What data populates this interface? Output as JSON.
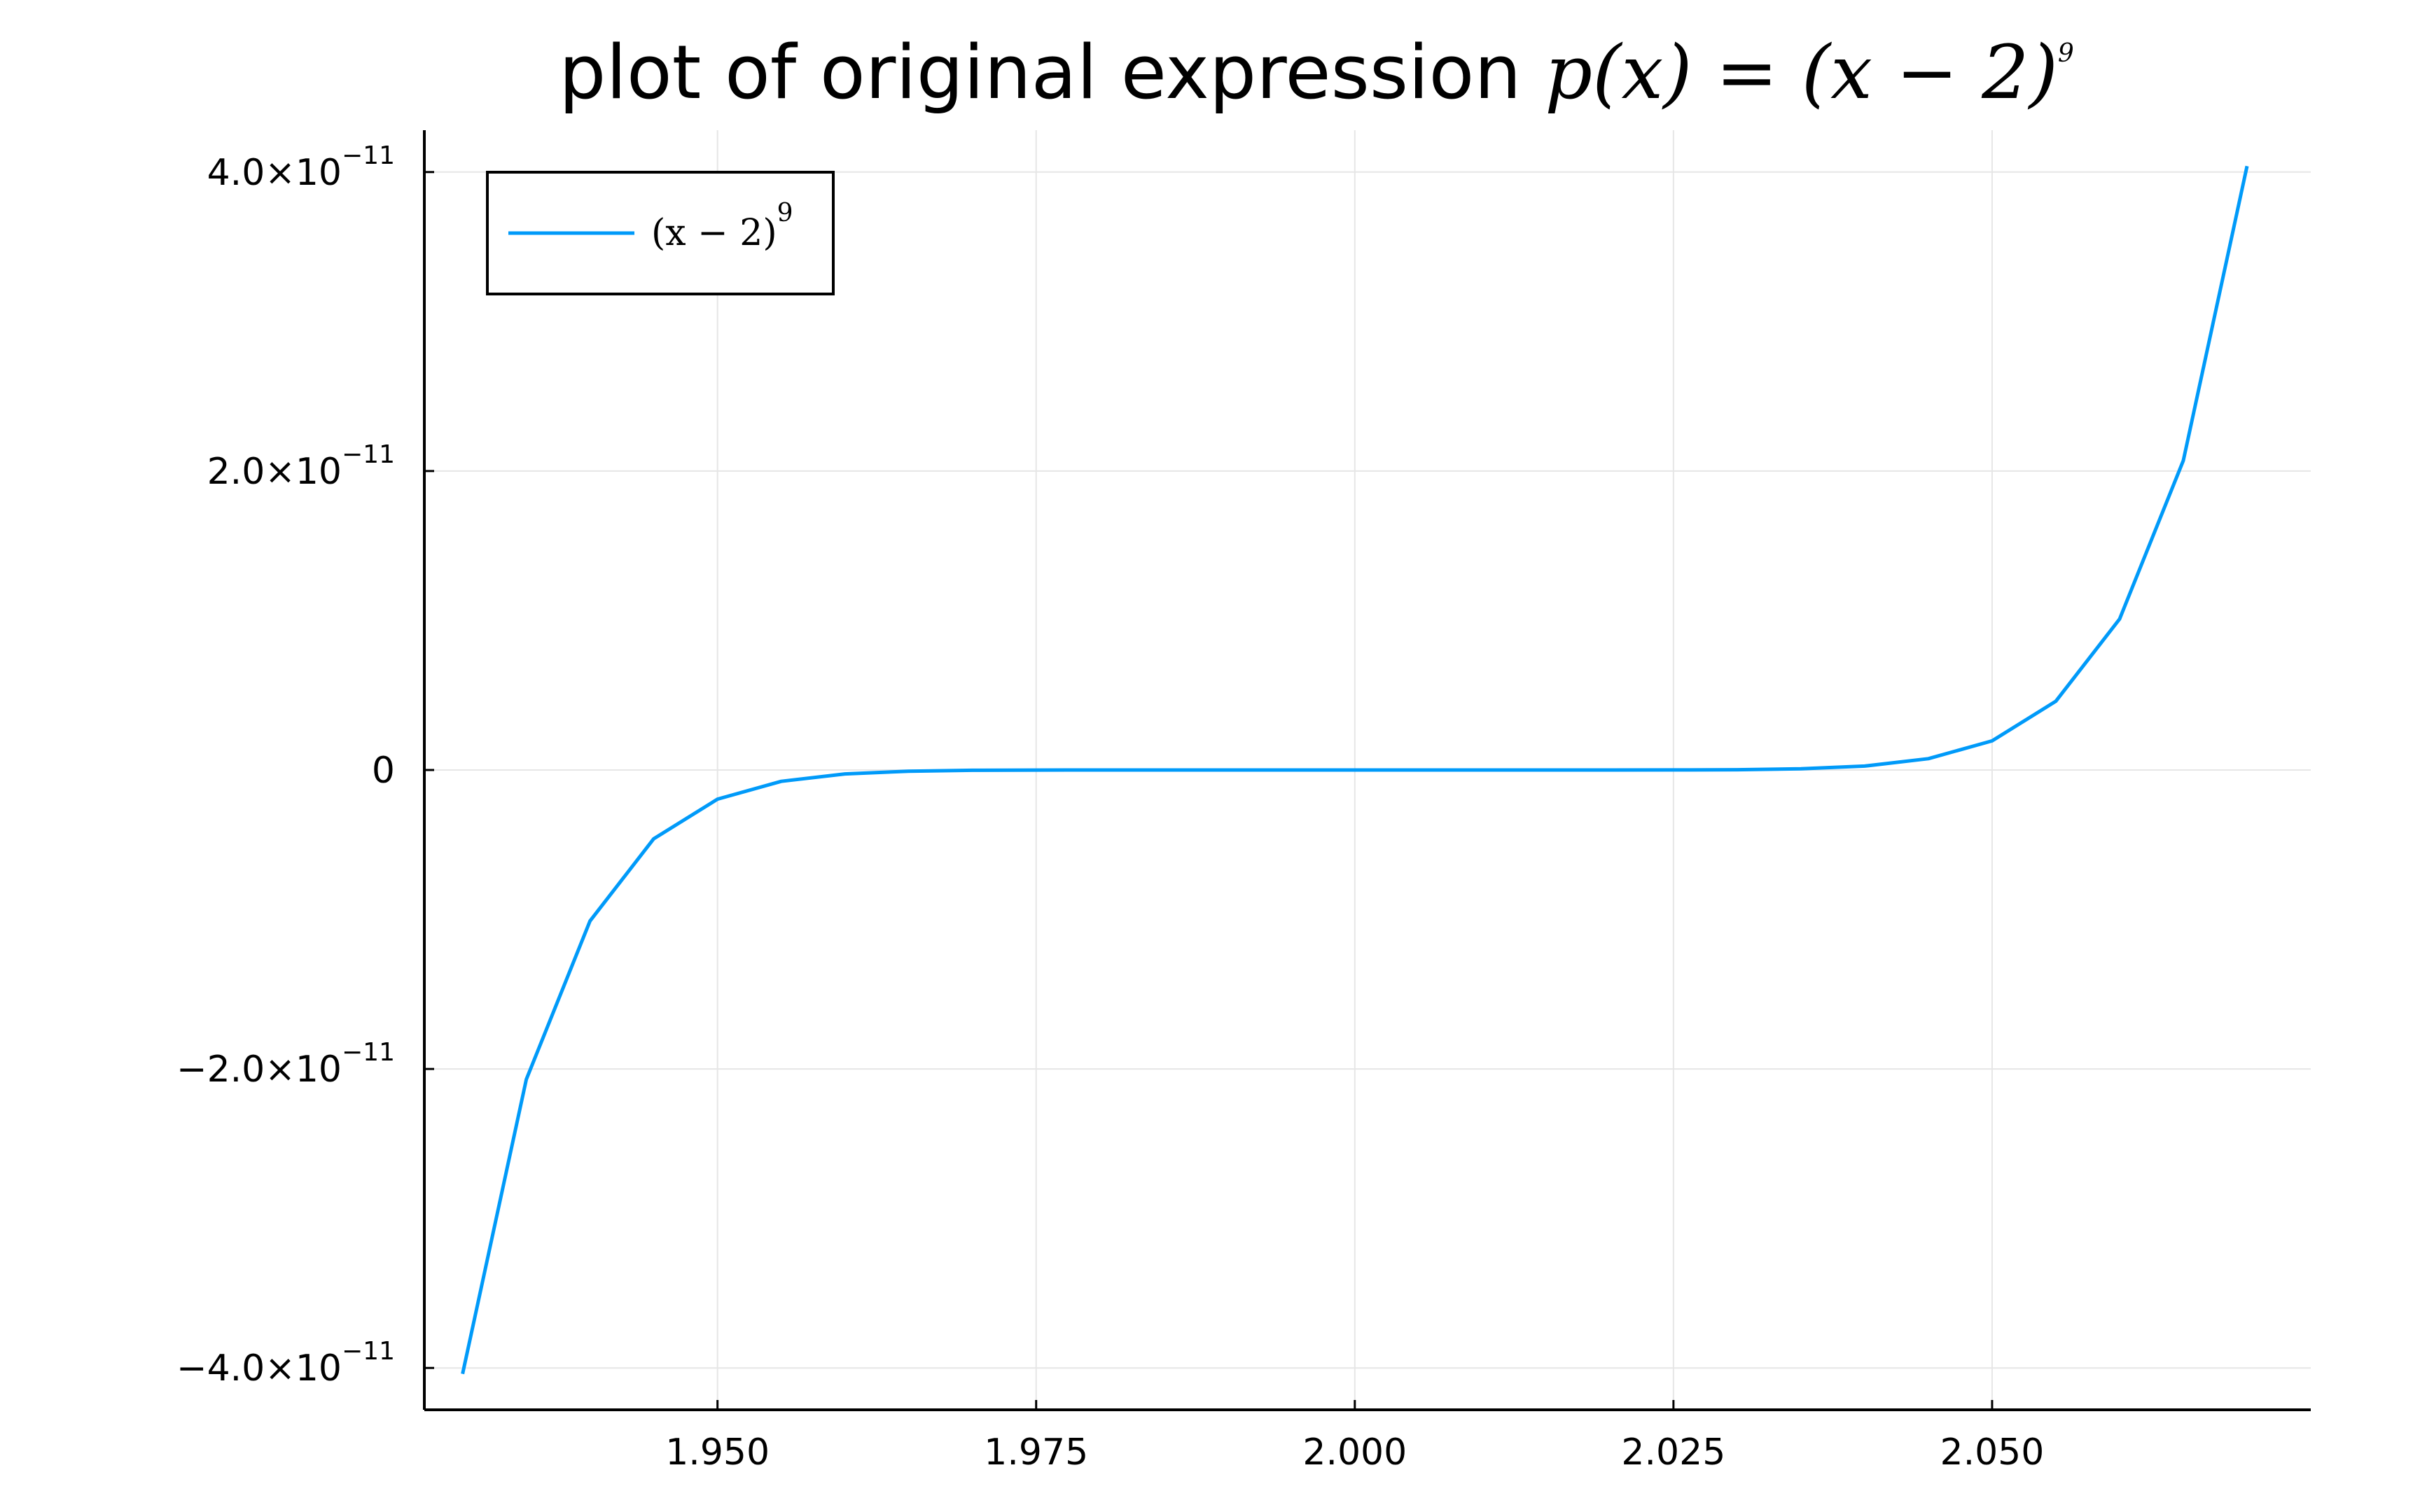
{
  "chart_data": {
    "type": "line",
    "title": {
      "prefix": "plot of original expression ",
      "math": "p(x) = (x − 2)",
      "math_exp": "9"
    },
    "xlabel": "",
    "ylabel": "",
    "xlim": [
      1.927,
      2.075
    ],
    "ylim": [
      -4.28e-11,
      4.28e-11
    ],
    "xticks": [
      {
        "value": 1.95,
        "label": "1.950"
      },
      {
        "value": 1.975,
        "label": "1.975"
      },
      {
        "value": 2.0,
        "label": "2.000"
      },
      {
        "value": 2.025,
        "label": "2.025"
      },
      {
        "value": 2.05,
        "label": "2.050"
      }
    ],
    "yticks": [
      {
        "value": 4e-11,
        "mantissa": "4.0×10",
        "exp": "−11"
      },
      {
        "value": 2e-11,
        "mantissa": "2.0×10",
        "exp": "−11"
      },
      {
        "value": 0,
        "mantissa": "0",
        "exp": ""
      },
      {
        "value": -2e-11,
        "mantissa": "−2.0×10",
        "exp": "−11"
      },
      {
        "value": -4e-11,
        "mantissa": "−4.0×10",
        "exp": "−11"
      }
    ],
    "grid": true,
    "legend_position": "top-left",
    "series": [
      {
        "name": "(x − 2)",
        "name_exp": "9",
        "color": "#009af9",
        "x": [
          1.93,
          1.935,
          1.94,
          1.945,
          1.95,
          1.955,
          1.96,
          1.965,
          1.97,
          1.975,
          1.98,
          1.985,
          1.99,
          1.995,
          2.0,
          2.005,
          2.01,
          2.015,
          2.02,
          2.025,
          2.03,
          2.035,
          2.04,
          2.045,
          2.05,
          2.055,
          2.06,
          2.065,
          2.07
        ],
        "y": [
          -4.04e-11,
          -2.07e-11,
          -1.01e-11,
          -4.6e-12,
          -1.95e-12,
          -7.6e-13,
          -2.6e-13,
          -7.9e-14,
          -2e-14,
          -3.8e-15,
          -5e-16,
          -3.8e-17,
          -1e-18,
          -2e-21,
          0,
          2e-21,
          1e-18,
          3.8e-17,
          5e-16,
          3.8e-15,
          2e-14,
          7.9e-14,
          2.6e-13,
          7.6e-13,
          1.95e-12,
          4.6e-12,
          1.01e-11,
          2.07e-11,
          4.04e-11
        ]
      }
    ]
  }
}
